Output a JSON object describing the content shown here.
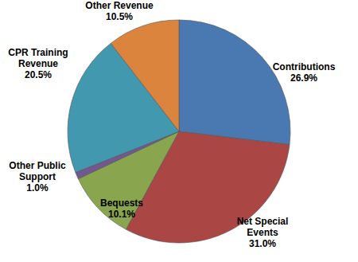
{
  "chart_data": {
    "type": "pie",
    "categories": [
      "Contributions",
      "Net Special Events",
      "Bequests",
      "Other Public Support",
      "CPR Training Revenue",
      "Other Revenue"
    ],
    "values": [
      26.9,
      31.0,
      10.1,
      1.0,
      20.5,
      10.5
    ],
    "value_labels": [
      "26.9%",
      "31.0%",
      "10.1%",
      "1.0%",
      "20.5%",
      "10.5%"
    ],
    "colors": [
      "#4a78b0",
      "#aa4643",
      "#89a54e",
      "#71588f",
      "#4198af",
      "#db843d"
    ],
    "data_labels": true
  }
}
